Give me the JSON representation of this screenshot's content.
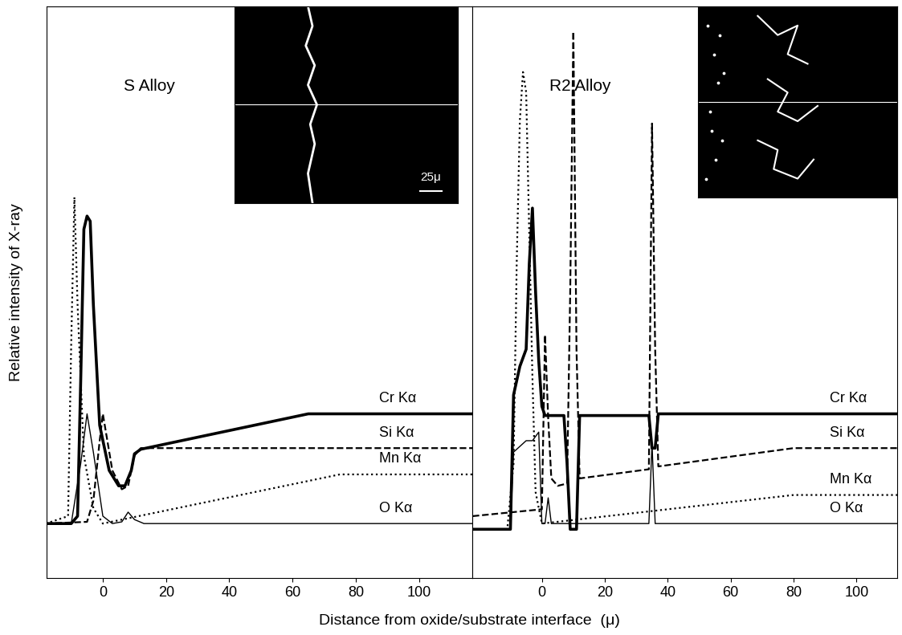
{
  "x_label": "Distance from oxide/substrate interface  (μ)",
  "y_label": "Relative intensity of X-ray",
  "chart_data": [
    {
      "type": "line",
      "title": "S Alloy",
      "scale_bar_label": "25μ",
      "xlim": [
        -17.7,
        117
      ],
      "xticks": [
        0,
        20,
        40,
        60,
        80,
        100
      ],
      "ylim": [
        0,
        100
      ],
      "tick_labels": "x",
      "series": [
        {
          "name": "Cr Kα",
          "color": "#000000",
          "line_style": "solid",
          "x": [
            -18,
            -10,
            -8,
            -7,
            -6,
            -5,
            -4,
            -3,
            -1,
            2,
            5,
            7,
            9,
            10,
            12,
            65,
            117
          ],
          "values": [
            9.5,
            9.5,
            10.8,
            34.6,
            61,
            63.3,
            62.4,
            47.8,
            26.7,
            18.8,
            16.1,
            16.1,
            18.8,
            21.7,
            22.5,
            28.7,
            28.7
          ]
        },
        {
          "name": "Si Kα",
          "color": "#000000",
          "line_style": "dashed",
          "x": [
            -18,
            -5,
            -3,
            -1,
            0,
            1,
            3,
            6,
            8,
            10,
            12,
            117
          ],
          "values": [
            9.5,
            9.8,
            13.5,
            24,
            28.7,
            25.4,
            18.8,
            15.5,
            16.1,
            21.4,
            22.7,
            22.7
          ]
        },
        {
          "name": "Mn Kα",
          "color": "#000000",
          "line_style": "dotted",
          "x": [
            -18,
            -11,
            -10,
            -9,
            -8,
            -6,
            -3,
            0,
            75,
            117
          ],
          "values": [
            9.5,
            10.8,
            41.2,
            66.6,
            47.8,
            21.4,
            12.2,
            9.5,
            18.1,
            18.1
          ]
        },
        {
          "name": "O Kα",
          "color": "#000000",
          "line_style": "solid",
          "x": [
            -18,
            -10,
            -7,
            -5,
            -3,
            0,
            3,
            6,
            8,
            10,
            13,
            117
          ],
          "values": [
            9.5,
            9.5,
            20,
            28.7,
            22,
            10.8,
            9.5,
            9.8,
            11.5,
            10.2,
            9.5,
            9.5
          ]
        }
      ]
    },
    {
      "type": "line",
      "title": "R2 Alloy",
      "xlim": [
        -22,
        113
      ],
      "xticks": [
        0,
        20,
        40,
        60,
        80,
        100
      ],
      "ylim": [
        0,
        100
      ],
      "tick_labels": "x",
      "series": [
        {
          "name": "Cr Kα",
          "color": "#000000",
          "line_style": "solid",
          "x": [
            -22,
            -10,
            -9,
            -7,
            -5,
            -4,
            -3,
            -2,
            -1,
            0,
            1,
            7,
            8,
            9,
            11,
            12,
            34,
            35,
            36,
            37,
            113
          ],
          "values": [
            8.5,
            8.5,
            32,
            37,
            40,
            55,
            64.7,
            50,
            38,
            30,
            28.4,
            28.4,
            20,
            8.5,
            8.5,
            28.4,
            28.4,
            22.7,
            22.7,
            28.7,
            28.7
          ]
        },
        {
          "name": "Si Kα",
          "color": "#000000",
          "line_style": "dashed",
          "x": [
            -22,
            0,
            1,
            2,
            3,
            5,
            8,
            9,
            10,
            11,
            12,
            34,
            35,
            36,
            37,
            80,
            113
          ],
          "values": [
            10.8,
            12,
            42.5,
            28,
            17.4,
            16.1,
            16.5,
            50,
            95.6,
            40,
            17.4,
            19,
            79.5,
            40,
            19.5,
            22.7,
            22.7
          ]
        },
        {
          "name": "Mn Kα",
          "color": "#000000",
          "line_style": "dotted",
          "x": [
            -22,
            -11,
            -9,
            -8,
            -7,
            -6,
            -5,
            -4,
            -3,
            -2,
            0,
            80,
            113
          ],
          "values": [
            8.5,
            8.5,
            20,
            55,
            80,
            88.5,
            85,
            60,
            35,
            15,
            9.5,
            14.5,
            14.5
          ]
        },
        {
          "name": "O Kα",
          "color": "#000000",
          "line_style": "solid",
          "x": [
            -22,
            -10,
            -9,
            -7,
            -5,
            -3,
            -1,
            0,
            1,
            2,
            3,
            5,
            34,
            35,
            36,
            113
          ],
          "values": [
            8.5,
            8.5,
            22,
            23,
            24,
            24,
            25.5,
            9.5,
            9.5,
            14,
            9.5,
            9.5,
            9.5,
            23.5,
            9.5,
            9.5
          ]
        }
      ]
    }
  ]
}
